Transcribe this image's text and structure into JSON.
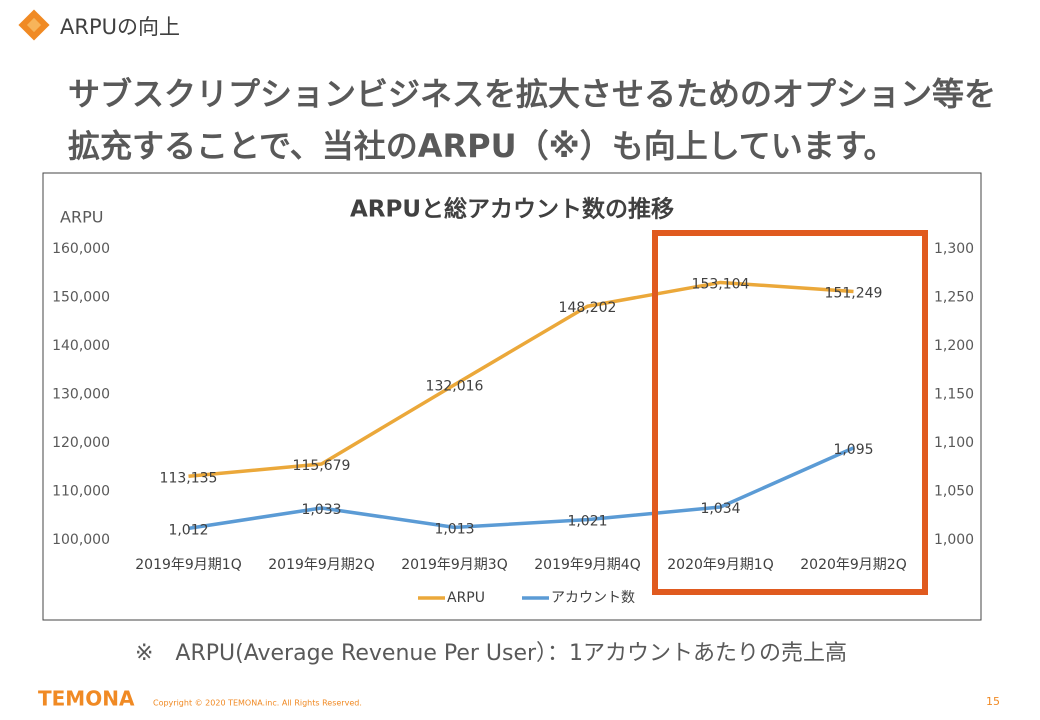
{
  "header": {
    "title": "ARPUの向上"
  },
  "heading": [
    "サブスクリプションビジネスを拡大させるためのオプション等を",
    "拡充することで、当社のARPU（※）も向上しています。"
  ],
  "chart_data": {
    "type": "line",
    "title": "ARPUと総アカウント数の推移",
    "y_label": "ARPU",
    "categories": [
      "2019年9月期1Q",
      "2019年9月期2Q",
      "2019年9月期3Q",
      "2019年9月期4Q",
      "2020年9月期1Q",
      "2020年9月期2Q"
    ],
    "series": [
      {
        "name": "ARPU",
        "color": "#eba83a",
        "values": [
          113135,
          115679,
          132016,
          148202,
          153104,
          151249
        ],
        "value_labels": [
          "113,135",
          "115,679",
          "132,016",
          "148,202",
          "153,104",
          "151,249"
        ]
      },
      {
        "name": "アカウント数",
        "color": "#5b9bd5",
        "axis": "y2",
        "values": [
          1012,
          1033,
          1013,
          1021,
          1034,
          1095
        ],
        "value_labels": [
          "1,012",
          "1,033",
          "1,013",
          "1,021",
          "1,034",
          "1,095"
        ]
      }
    ],
    "ylim": [
      100000,
      160000
    ],
    "yticks": [
      {
        "value": 100000,
        "label": "100,000"
      },
      {
        "value": 110000,
        "label": "110,000"
      },
      {
        "value": 120000,
        "label": "120,000"
      },
      {
        "value": 130000,
        "label": "130,000"
      },
      {
        "value": 140000,
        "label": "140,000"
      },
      {
        "value": 150000,
        "label": "150,000"
      },
      {
        "value": 160000,
        "label": "160,000"
      }
    ],
    "y2lim": [
      1000,
      1300
    ],
    "y2ticks": [
      {
        "value": 1000,
        "label": "1,000"
      },
      {
        "value": 1050,
        "label": "1,050"
      },
      {
        "value": 1100,
        "label": "1,100"
      },
      {
        "value": 1150,
        "label": "1,150"
      },
      {
        "value": 1200,
        "label": "1,200"
      },
      {
        "value": 1250,
        "label": "1,250"
      },
      {
        "value": 1300,
        "label": "1,300"
      }
    ],
    "grid": false,
    "legend": "bottom"
  },
  "footnote": "※　ARPU(Average Revenue Per User）：1アカウントあたりの売上高",
  "footer": {
    "logo": "TEMONA",
    "copyright": "Copyright © 2020 TEMONA.inc. All Rights Reserved.",
    "page": "15"
  }
}
